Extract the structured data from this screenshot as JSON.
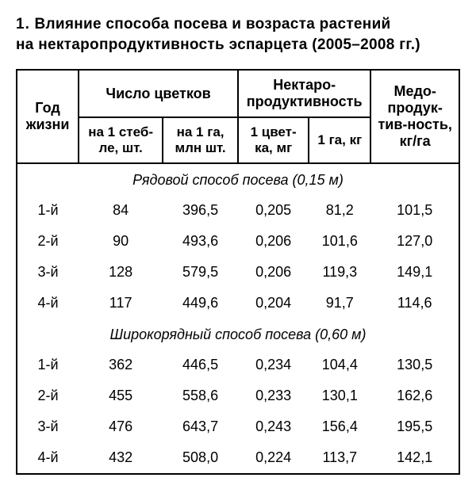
{
  "title_num": "1.",
  "title_line1": "Влияние способа посева и возраста растений",
  "title_line2": "на нектаропродуктивность эспарцета (2005–2008 гг.)",
  "table": {
    "header": {
      "year": "Год жизни",
      "flowers_group": "Число цветков",
      "nectar_group": "Нектаро-продуктивность",
      "honey": "Медо-продук-тив-ность, кг/га",
      "per_stem": "на 1 стеб-ле, шт.",
      "per_ha_mln": "на 1 га, млн шт.",
      "per_flower": "1 цвет-ка, мг",
      "per_ha_kg": "1 га, кг"
    },
    "sections": [
      {
        "label": "Рядовой способ посева (0,15 м)",
        "rows": [
          {
            "year": "1-й",
            "a": "84",
            "b": "396,5",
            "c": "0,205",
            "d": "81,2",
            "e": "101,5"
          },
          {
            "year": "2-й",
            "a": "90",
            "b": "493,6",
            "c": "0,206",
            "d": "101,6",
            "e": "127,0"
          },
          {
            "year": "3-й",
            "a": "128",
            "b": "579,5",
            "c": "0,206",
            "d": "119,3",
            "e": "149,1"
          },
          {
            "year": "4-й",
            "a": "117",
            "b": "449,6",
            "c": "0,204",
            "d": "91,7",
            "e": "114,6"
          }
        ]
      },
      {
        "label": "Широкорядный способ посева (0,60 м)",
        "rows": [
          {
            "year": "1-й",
            "a": "362",
            "b": "446,5",
            "c": "0,234",
            "d": "104,4",
            "e": "130,5"
          },
          {
            "year": "2-й",
            "a": "455",
            "b": "558,6",
            "c": "0,233",
            "d": "130,1",
            "e": "162,6"
          },
          {
            "year": "3-й",
            "a": "476",
            "b": "643,7",
            "c": "0,243",
            "d": "156,4",
            "e": "195,5"
          },
          {
            "year": "4-й",
            "a": "432",
            "b": "508,0",
            "c": "0,224",
            "d": "113,7",
            "e": "142,1"
          }
        ]
      }
    ]
  }
}
